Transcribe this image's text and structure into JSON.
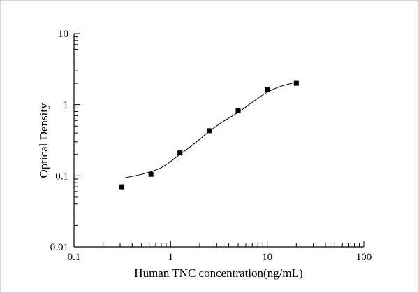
{
  "figure": {
    "background": "#ffffff",
    "border_color": "#d6d6d6",
    "axis_color": "#000000"
  },
  "chart_data": {
    "type": "scatter",
    "title": "",
    "xlabel": "Human TNC concentration(ng/mL)",
    "ylabel": "Optical Density",
    "x_scale": "log",
    "y_scale": "log",
    "xlim": [
      0.1,
      100
    ],
    "ylim": [
      0.01,
      10
    ],
    "grid": false,
    "legend": false,
    "x_ticks": {
      "values": [
        0.1,
        1,
        10,
        100
      ],
      "labels": [
        "0.1",
        "1",
        "10",
        "100"
      ]
    },
    "y_ticks": {
      "values": [
        0.01,
        0.1,
        1,
        10
      ],
      "labels": [
        "0.01",
        "0.1",
        "1",
        "10"
      ]
    },
    "series": [
      {
        "name": "standard-points",
        "marker": "square",
        "marker_size": 7,
        "color": "#000000",
        "x": [
          0.313,
          0.625,
          1.25,
          2.5,
          5,
          10,
          20
        ],
        "y": [
          0.07,
          0.105,
          0.21,
          0.43,
          0.82,
          1.65,
          2.0
        ]
      }
    ],
    "fit_curve": {
      "name": "4pl-fit-curve",
      "color": "#000000",
      "width": 1,
      "points": [
        [
          0.33,
          0.093
        ],
        [
          0.5,
          0.105
        ],
        [
          0.8,
          0.13
        ],
        [
          1.25,
          0.2
        ],
        [
          1.8,
          0.29
        ],
        [
          2.5,
          0.42
        ],
        [
          3.5,
          0.58
        ],
        [
          5,
          0.78
        ],
        [
          7,
          1.08
        ],
        [
          10,
          1.5
        ],
        [
          14,
          1.82
        ],
        [
          20,
          2.07
        ]
      ]
    }
  }
}
